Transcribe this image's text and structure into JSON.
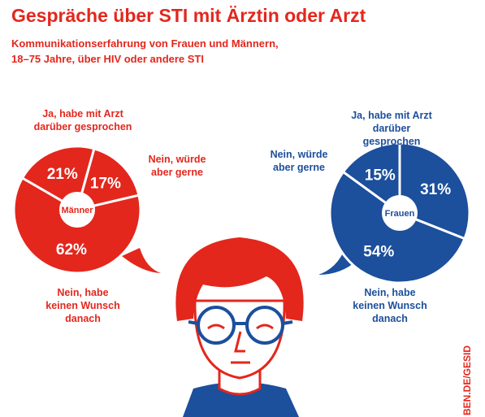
{
  "title": "Gespräche über STI mit Ärztin oder Arzt",
  "subtitle": "Kommunikationserfahrung von Frauen und Männern,\n18–75 Jahre, über HIV oder andere STI",
  "source": "BEN.DE/GESID",
  "chart_data": [
    {
      "type": "pie",
      "center_label": "Männer",
      "color": "#e3271d",
      "categories": [
        "Ja, habe mit Arzt\ndarüber gesprochen",
        "Nein, würde\naber gerne",
        "Nein, habe\nkeinen Wunsch\ndanach"
      ],
      "values": [
        21,
        17,
        62
      ],
      "value_labels": [
        "21%",
        "17%",
        "62%"
      ]
    },
    {
      "type": "pie",
      "center_label": "Frauen",
      "color": "#1c4f9c",
      "categories": [
        "Ja, habe mit Arzt\ndarüber gesprochen",
        "Nein, habe\nkeinen Wunsch\ndanach",
        "Nein, würde\naber gerne"
      ],
      "values": [
        31,
        54,
        15
      ],
      "value_labels": [
        "31%",
        "54%",
        "15%"
      ]
    }
  ]
}
